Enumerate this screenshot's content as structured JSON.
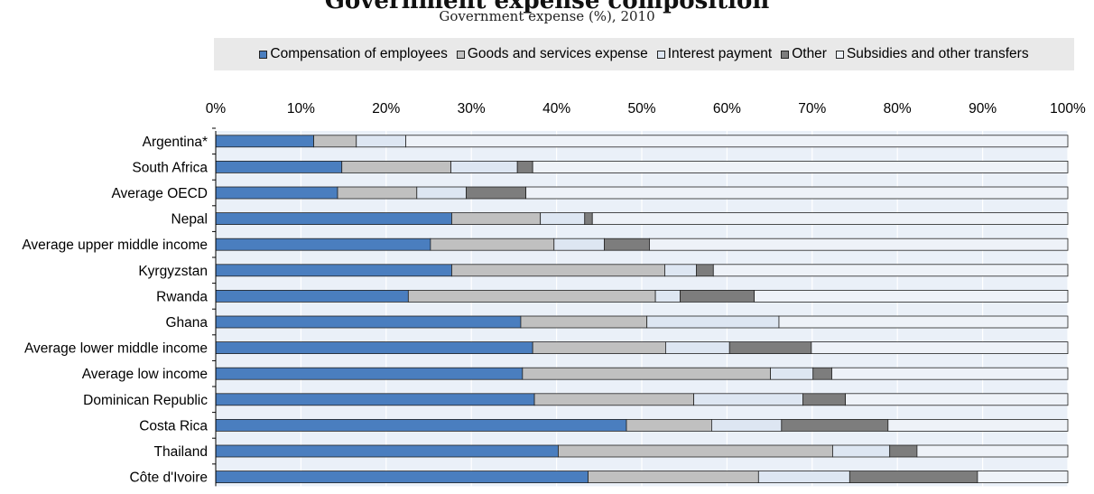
{
  "title": "Government expense composition",
  "subtitle": "Government expense (%), 2010",
  "colors": {
    "compensation": "#4a7ebf",
    "goods": "#c0c0c0",
    "interest": "#dde6f2",
    "other": "#7d7d7d",
    "subsidies": "#eef2f8"
  },
  "chart_data": {
    "type": "bar",
    "orientation": "horizontal",
    "stacked": true,
    "xlim": [
      0,
      100
    ],
    "x_ticks": [
      "0%",
      "10%",
      "20%",
      "30%",
      "40%",
      "50%",
      "60%",
      "70%",
      "80%",
      "90%",
      "100%"
    ],
    "legend_position": "top",
    "grid": true,
    "categories": [
      "Argentina*",
      "South Africa",
      "Average OECD",
      "Nepal",
      "Average upper middle income",
      "Kyrgyzstan",
      "Rwanda",
      "Ghana",
      "Average lower middle income",
      "Average low income",
      "Dominican Republic",
      "Costa Rica",
      "Thailand",
      "Côte d'Ivoire"
    ],
    "series": [
      {
        "name": "Compensation of employees",
        "color_key": "compensation",
        "values": [
          11.5,
          14.8,
          14.3,
          27.7,
          25.2,
          27.7,
          22.6,
          35.8,
          37.2,
          36.0,
          37.4,
          48.2,
          40.2,
          43.7
        ]
      },
      {
        "name": "Goods and services expense",
        "color_key": "goods",
        "values": [
          5.0,
          12.8,
          9.3,
          10.4,
          14.5,
          25.0,
          29.0,
          14.8,
          15.6,
          29.1,
          18.7,
          10.0,
          32.2,
          20.0
        ]
      },
      {
        "name": "Interest payment",
        "color_key": "interest",
        "values": [
          5.8,
          7.8,
          5.8,
          5.2,
          5.9,
          3.7,
          2.9,
          15.5,
          7.5,
          5.0,
          12.8,
          8.2,
          6.7,
          10.7
        ]
      },
      {
        "name": "Other",
        "color_key": "other",
        "values": [
          0,
          1.8,
          7.0,
          0.9,
          5.3,
          2.0,
          8.7,
          0,
          9.6,
          2.2,
          5.0,
          12.5,
          3.2,
          15.0
        ]
      },
      {
        "name": "Subsidies and other transfers",
        "color_key": "subsidies",
        "values": [
          77.7,
          62.8,
          63.6,
          55.8,
          49.1,
          41.6,
          36.8,
          33.9,
          30.1,
          27.7,
          26.1,
          21.1,
          17.7,
          10.6
        ]
      }
    ]
  }
}
